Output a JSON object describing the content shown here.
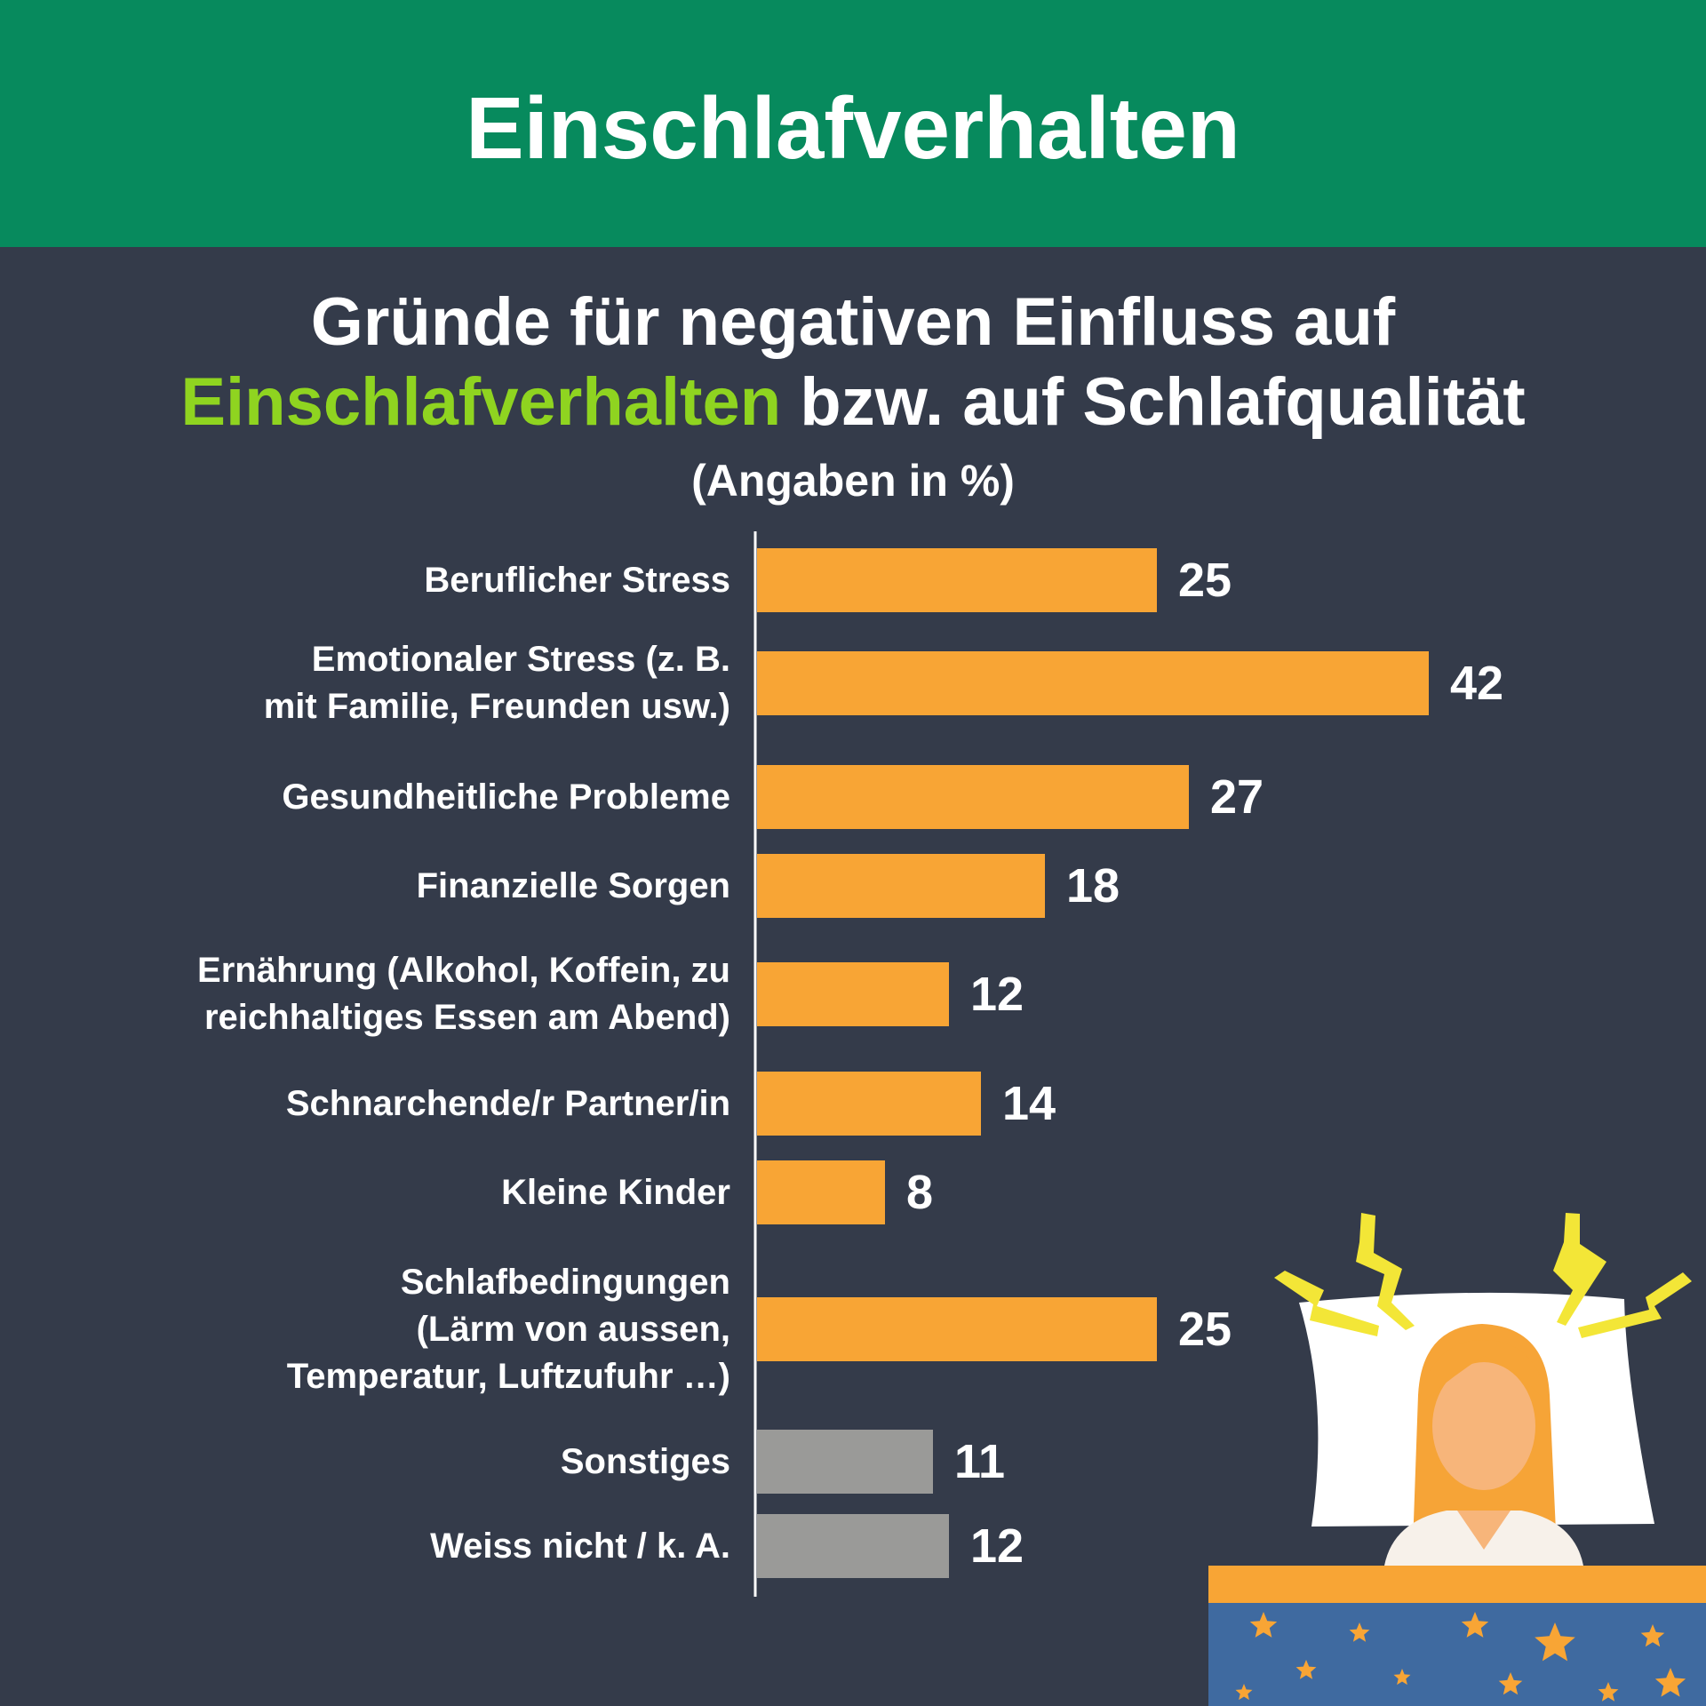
{
  "header": {
    "title": "Einschlafverhalten"
  },
  "subtitle": {
    "line1": "Gründe für negativen Einfluss auf",
    "line2_highlight": "Einschlafverhalten",
    "line2_rest": " bzw. auf Schlafqualität",
    "unit": "(Angaben in %)"
  },
  "colors": {
    "header_bg": "#078a5d",
    "background": "#343b4a",
    "highlight": "#8fd420",
    "bar_main": "#f8a535",
    "bar_other": "#9a9a98"
  },
  "chart_data": {
    "type": "bar",
    "orientation": "horizontal",
    "title": "Gründe für negativen Einfluss auf Einschlafverhalten bzw. auf Schlafqualität",
    "unit": "(Angaben in %)",
    "categories": [
      [
        "Beruflicher Stress"
      ],
      [
        "Emotionaler Stress (z. B.",
        "mit Familie, Freunden usw.)"
      ],
      [
        "Gesundheitliche Probleme"
      ],
      [
        "Finanzielle Sorgen"
      ],
      [
        "Ernährung (Alkohol, Koffein, zu",
        "reichhaltiges Essen am Abend)"
      ],
      [
        "Schnarchende/r Partner/in"
      ],
      [
        "Kleine Kinder"
      ],
      [
        "Schlafbedingungen",
        "(Lärm von aussen,",
        "Temperatur, Luftzufuhr …)"
      ],
      [
        "Sonstiges"
      ],
      [
        "Weiss nicht / k. A."
      ]
    ],
    "values": [
      25,
      42,
      27,
      18,
      12,
      14,
      8,
      25,
      11,
      12
    ],
    "bar_colors": [
      "#f8a535",
      "#f8a535",
      "#f8a535",
      "#f8a535",
      "#f8a535",
      "#f8a535",
      "#f8a535",
      "#f8a535",
      "#9a9a98",
      "#9a9a98"
    ],
    "xlim": [
      0,
      50
    ],
    "grid": false,
    "legend": "none"
  }
}
